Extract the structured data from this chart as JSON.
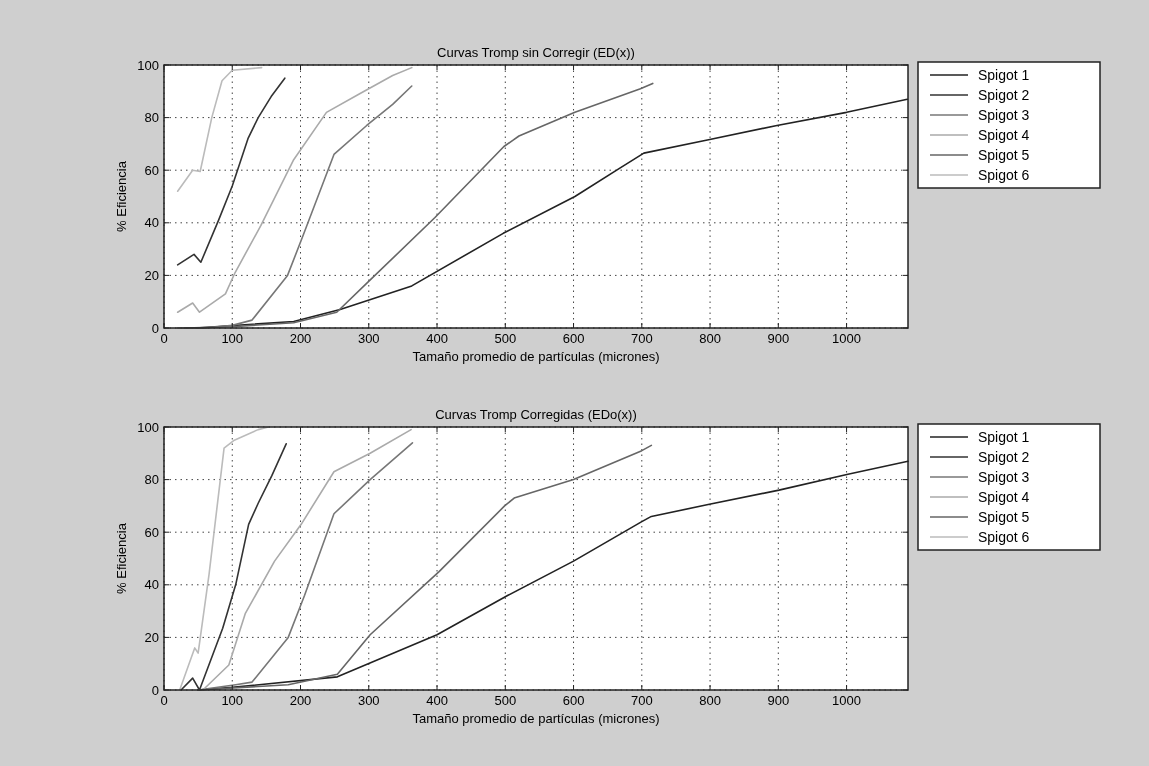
{
  "chart_data": [
    {
      "type": "line",
      "title": "Curvas Tromp sin Corregir (ED(x))",
      "xlabel": "Tamaño promedio de partículas (micrones)",
      "ylabel": "% Eficiencia",
      "xlim": [
        0,
        1090
      ],
      "ylim": [
        0,
        100
      ],
      "xticks": [
        0,
        100,
        200,
        300,
        400,
        500,
        600,
        700,
        800,
        900,
        1000
      ],
      "yticks": [
        0,
        20,
        40,
        60,
        80,
        100
      ],
      "grid": true,
      "legend": "right",
      "line_style": "solid",
      "series": [
        {
          "name": "Spigot 1",
          "color": "#222222",
          "x": [
            47,
            190,
            258,
            363,
            497,
            602,
            669,
            703,
            796,
            898,
            1000,
            1089
          ],
          "values": [
            0,
            2.5,
            7,
            16,
            36,
            50,
            61,
            66.5,
            71.5,
            77,
            82,
            87
          ]
        },
        {
          "name": "Spigot 2",
          "color": "#333333",
          "x": [
            20,
            44,
            54,
            80,
            100,
            123,
            138,
            157,
            177
          ],
          "values": [
            24,
            28,
            25,
            41,
            54,
            72,
            80,
            88,
            95
          ]
        },
        {
          "name": "Spigot 3",
          "color": "#777777",
          "x": [
            20,
            60,
            100,
            129,
            181,
            205,
            249,
            297,
            335,
            363
          ],
          "values": [
            0,
            0,
            1,
            3,
            20,
            36,
            66,
            77,
            85,
            92
          ]
        },
        {
          "name": "Spigot 4",
          "color": "#aaaaaa",
          "x": [
            20,
            42,
            52,
            90,
            104,
            142,
            190,
            238,
            286,
            335,
            363
          ],
          "values": [
            6,
            9.5,
            6,
            13,
            21,
            39,
            64,
            82,
            89,
            96,
            99
          ]
        },
        {
          "name": "Spigot 5",
          "color": "#666666",
          "x": [
            30,
            100,
            190,
            253,
            301,
            397,
            498,
            512,
            520,
            602,
            698,
            716
          ],
          "values": [
            0,
            0.5,
            2,
            6,
            18,
            42,
            69,
            71.5,
            73,
            82,
            91,
            93
          ]
        },
        {
          "name": "Spigot 6",
          "color": "#bbbbbb",
          "x": [
            20,
            42,
            53,
            70,
            85,
            100,
            143
          ],
          "values": [
            52,
            60,
            59.5,
            80,
            94,
            98,
            99
          ]
        }
      ]
    },
    {
      "type": "line",
      "title": "Curvas Tromp Corregidas (EDo(x))",
      "xlabel": "Tamaño promedio de partículas (micrones)",
      "ylabel": "% Eficiencia",
      "xlim": [
        0,
        1090
      ],
      "ylim": [
        0,
        100
      ],
      "xticks": [
        0,
        100,
        200,
        300,
        400,
        500,
        600,
        700,
        800,
        900,
        1000
      ],
      "yticks": [
        0,
        20,
        40,
        60,
        80,
        100
      ],
      "grid": true,
      "legend": "right",
      "line_style": "solid",
      "series": [
        {
          "name": "Spigot 1",
          "color": "#222222",
          "x": [
            50,
            100,
            254,
            400,
            504,
            600,
            700,
            714,
            799,
            901,
            1002,
            1090
          ],
          "values": [
            0,
            1,
            5,
            21,
            36,
            49,
            64,
            66,
            70.6,
            76,
            82,
            87
          ]
        },
        {
          "name": "Spigot 2",
          "color": "#333333",
          "x": [
            25,
            42,
            52,
            86,
            105,
            124,
            138,
            158,
            179
          ],
          "values": [
            0,
            4.5,
            0,
            23.5,
            40,
            63,
            71,
            81.5,
            93.6
          ]
        },
        {
          "name": "Spigot 3",
          "color": "#777777",
          "x": [
            50,
            105,
            129,
            182,
            206,
            249,
            302,
            364
          ],
          "values": [
            0,
            2,
            3,
            20,
            36,
            67,
            80,
            94
          ]
        },
        {
          "name": "Spigot 4",
          "color": "#aaaaaa",
          "x": [
            57,
            95,
            119,
            162,
            201,
            249,
            302,
            362
          ],
          "values": [
            0,
            9.5,
            29,
            49,
            63,
            83,
            90,
            99
          ]
        },
        {
          "name": "Spigot 5",
          "color": "#666666",
          "x": [
            50,
            182,
            254,
            302,
            403,
            499,
            513,
            600,
            700,
            714
          ],
          "values": [
            0,
            2,
            6,
            21,
            45,
            70,
            73,
            80,
            91,
            93
          ]
        },
        {
          "name": "Spigot 6",
          "color": "#bbbbbb",
          "x": [
            23,
            45,
            50,
            66,
            88,
            103,
            138,
            153
          ],
          "values": [
            0,
            16,
            14,
            44,
            92,
            95,
            99,
            100
          ]
        }
      ]
    }
  ]
}
